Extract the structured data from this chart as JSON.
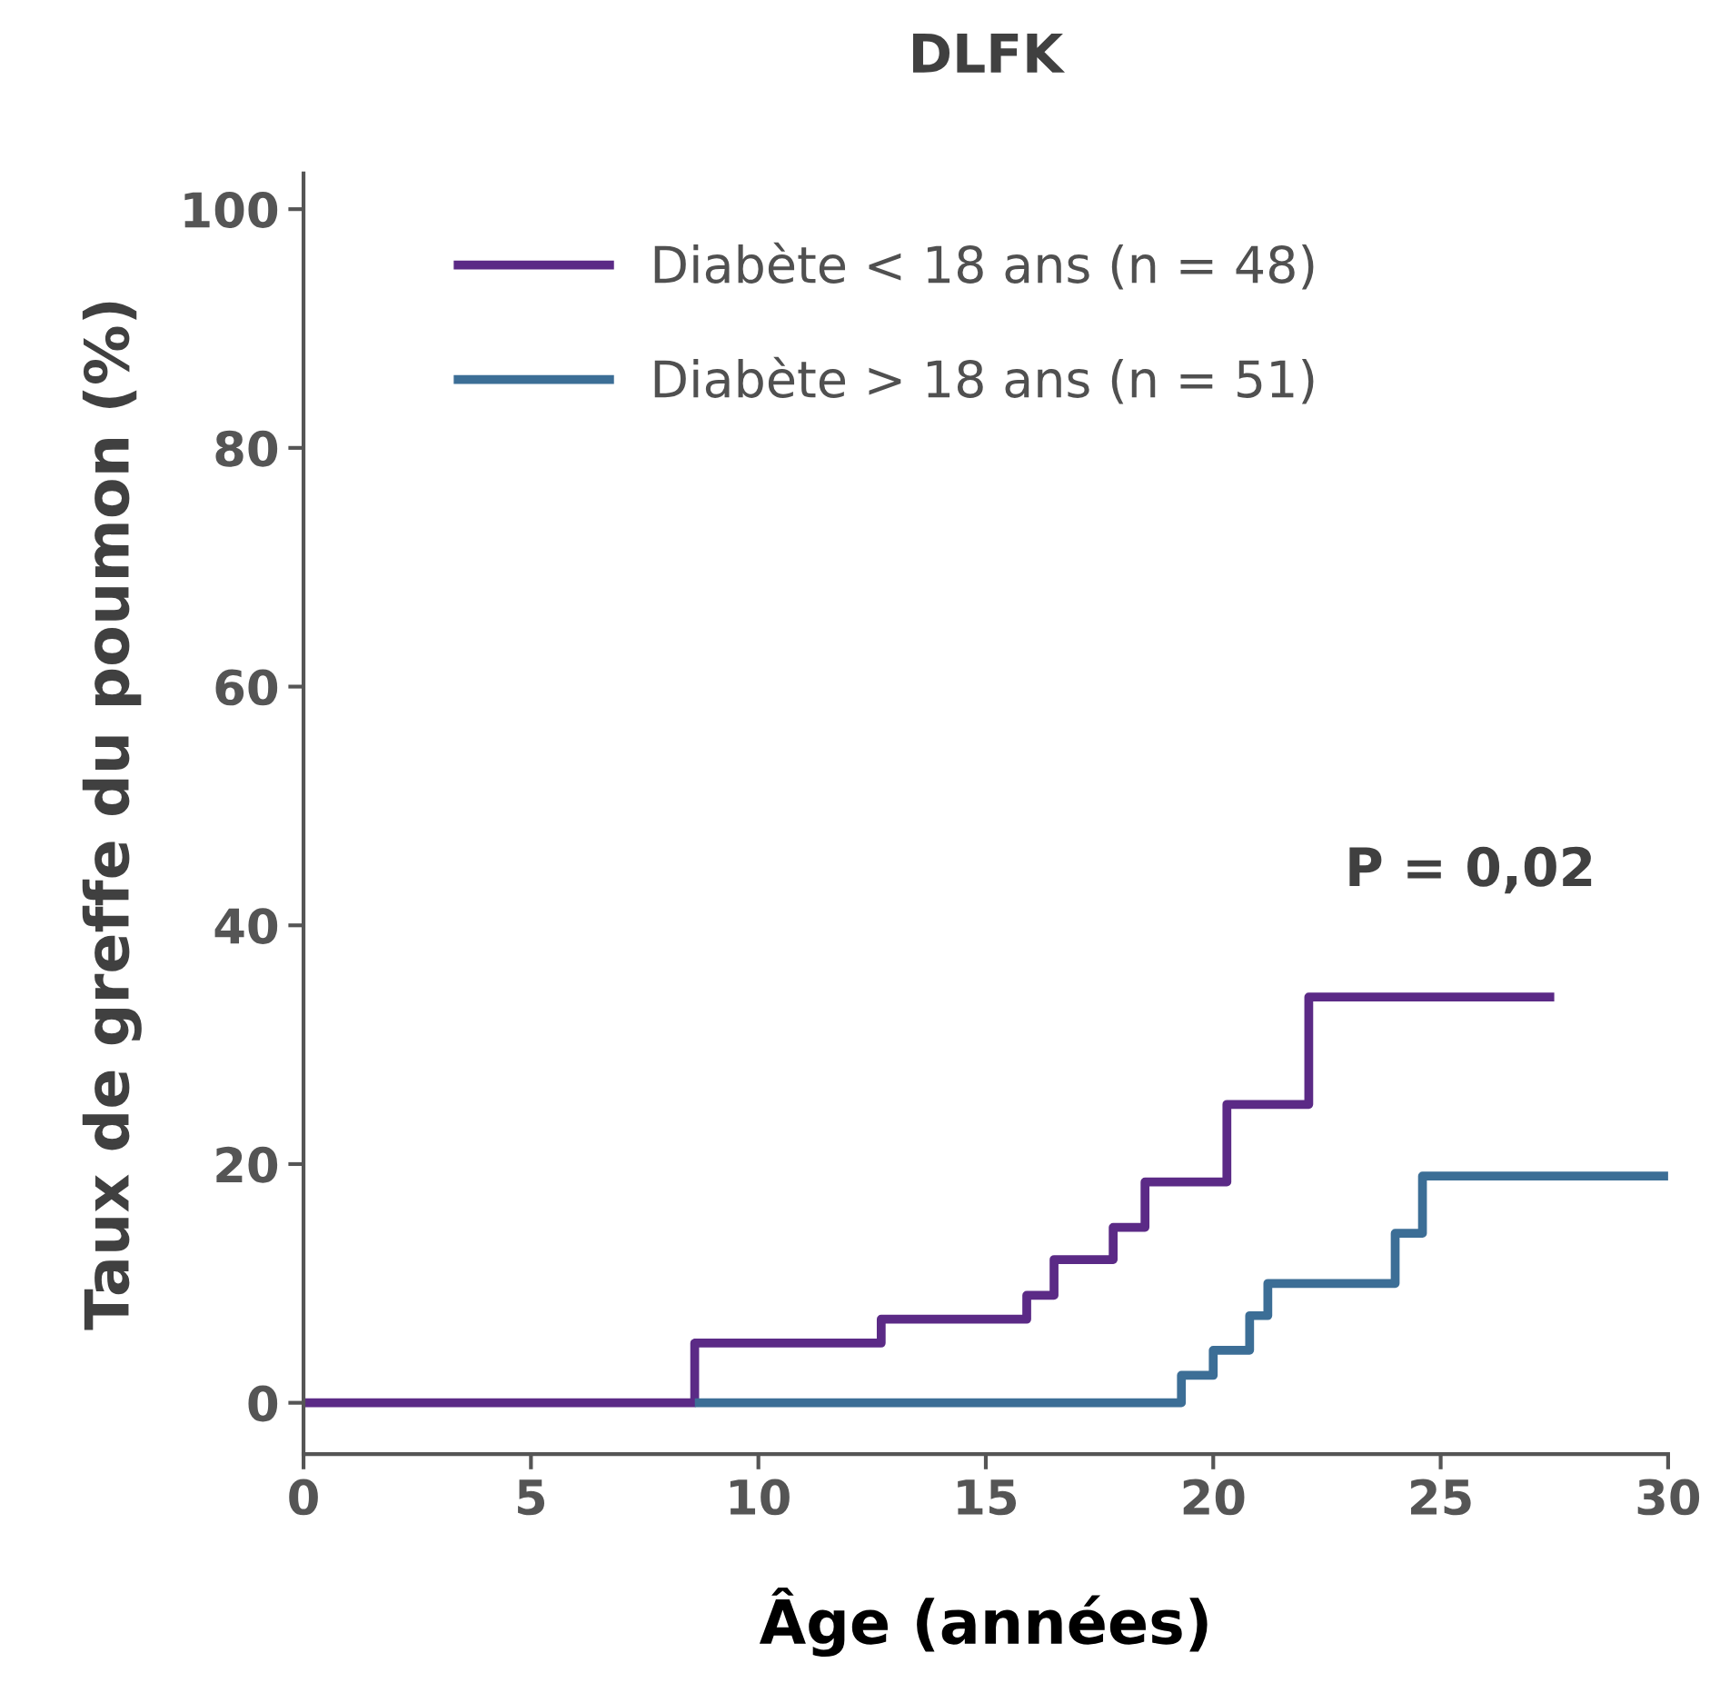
{
  "chart_data": {
    "type": "step",
    "title": "DLFK",
    "xlabel": "Âge (années)",
    "ylabel": "Taux de greffe du poumon (%)",
    "series": [
      {
        "name": "Diabète < 18 ans (n = 48)",
        "color": "#5b2a86",
        "x": [
          0,
          8.6,
          12.7,
          15.9,
          16.5,
          17.8,
          18.5,
          20.3,
          22.1,
          27.4
        ],
        "values": [
          0,
          5,
          7,
          9,
          12,
          14.7,
          18.5,
          25,
          34,
          34
        ]
      },
      {
        "name": "Diabète > 18 ans (n = 51)",
        "color": "#3c6e96",
        "x": [
          8.7,
          19.3,
          20.0,
          20.8,
          21.2,
          24.0,
          24.6,
          30
        ],
        "values": [
          0,
          2.3,
          4.4,
          7.3,
          10,
          14.2,
          19,
          19
        ]
      }
    ],
    "xlim": [
      0,
      30
    ],
    "ylim": [
      -4.3,
      103
    ],
    "xticks": [
      0,
      5,
      10,
      15,
      20,
      25,
      30
    ],
    "yticks": [
      0,
      20,
      40,
      60,
      80,
      100
    ],
    "annotations": [
      "P = 0,02"
    ],
    "legend": "top left",
    "grid": false
  }
}
